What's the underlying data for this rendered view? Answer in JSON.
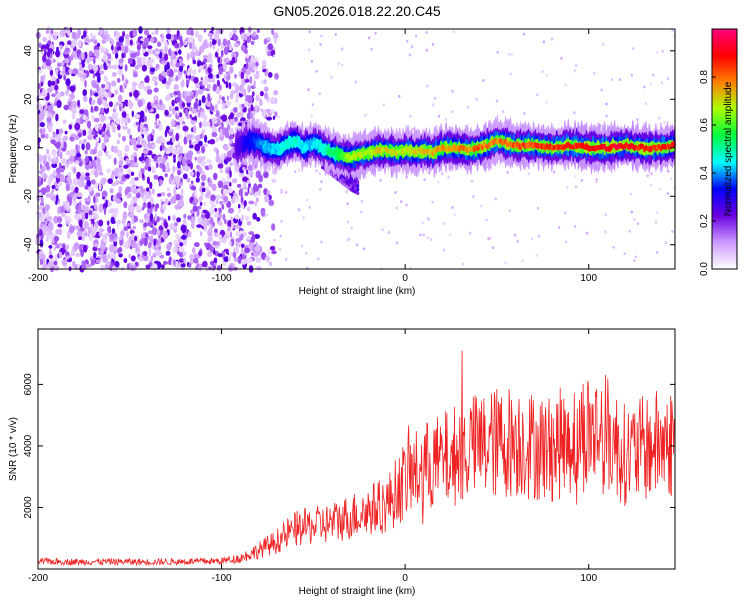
{
  "title": "GN05.2026.018.22.20.C45",
  "chart_data": [
    {
      "type": "heatmap",
      "xlabel": "Height of straight line (km)",
      "ylabel": "Frequency (Hz)",
      "xlim": [
        -200,
        147
      ],
      "ylim": [
        -50,
        49
      ],
      "xticks": [
        -200,
        -100,
        0,
        100
      ],
      "yticks": [
        -40,
        -20,
        0,
        20,
        40
      ],
      "colorbar": {
        "label": "Normalized spectral amplitude",
        "range": [
          0,
          1
        ],
        "ticks": [
          "0.0",
          "0.2",
          "0.4",
          "0.6",
          "0.8"
        ],
        "colormap": [
          "#ffffff",
          "#cc99ff",
          "#6a00e0",
          "#0000ff",
          "#00ffff",
          "#00ff40",
          "#aaff00",
          "#ff8000",
          "#ff0000",
          "#ff0080"
        ]
      },
      "noise_region_x": [
        -200,
        -80
      ],
      "ridge": {
        "x": [
          -92,
          -85,
          -80,
          -75,
          -70,
          -65,
          -60,
          -55,
          -50,
          -45,
          -40,
          -35,
          -30,
          -25,
          -20,
          -15,
          -10,
          -5,
          0,
          5,
          10,
          15,
          20,
          25,
          30,
          35,
          40,
          45,
          50,
          55,
          60,
          70,
          80,
          90,
          100,
          110,
          120,
          130,
          140,
          147
        ],
        "freq": [
          0,
          3,
          2,
          0,
          -1,
          1,
          3,
          0,
          2,
          0,
          -2,
          -3,
          -4,
          -3,
          -2,
          -1,
          -1,
          -2,
          -1,
          -2,
          -1,
          -2,
          0,
          0,
          0,
          -1,
          0,
          1,
          3,
          2,
          1,
          1,
          0,
          1,
          0,
          0,
          1,
          0,
          0,
          1
        ],
        "amplitude": [
          0.25,
          0.35,
          0.4,
          0.45,
          0.45,
          0.5,
          0.5,
          0.45,
          0.45,
          0.5,
          0.55,
          0.6,
          0.7,
          0.7,
          0.72,
          0.75,
          0.75,
          0.72,
          0.72,
          0.75,
          0.75,
          0.78,
          0.8,
          0.8,
          0.82,
          0.82,
          0.85,
          0.85,
          0.82,
          0.85,
          0.85,
          0.88,
          0.9,
          0.9,
          0.95,
          0.95,
          0.95,
          0.92,
          0.9,
          0.9
        ]
      },
      "tail": {
        "x": [
          -45,
          -40,
          -35,
          -30,
          -25
        ],
        "freq": [
          -5,
          -8,
          -11,
          -14,
          -16
        ]
      }
    },
    {
      "type": "line",
      "xlabel": "Height of straight line (km)",
      "ylabel": "SNR (10 * v/v)",
      "xlim": [
        -200,
        147
      ],
      "ylim": [
        0,
        7800
      ],
      "xticks": [
        -200,
        -100,
        0,
        100
      ],
      "yticks": [
        2000,
        4000,
        6000
      ],
      "series": [
        {
          "color": "#ee2222",
          "x": [
            -200,
            -180,
            -160,
            -140,
            -120,
            -100,
            -90,
            -80,
            -70,
            -60,
            -50,
            -40,
            -30,
            -20,
            -10,
            0,
            10,
            20,
            30,
            40,
            50,
            60,
            70,
            80,
            90,
            100,
            110,
            120,
            130,
            140,
            147
          ],
          "values": [
            250,
            230,
            240,
            230,
            240,
            260,
            350,
            600,
            900,
            1300,
            1400,
            1500,
            1700,
            1900,
            2100,
            2900,
            3300,
            3500,
            3800,
            4000,
            4100,
            4200,
            4000,
            3900,
            4300,
            4500,
            4400,
            3700,
            3900,
            4100,
            4100
          ]
        }
      ]
    }
  ]
}
